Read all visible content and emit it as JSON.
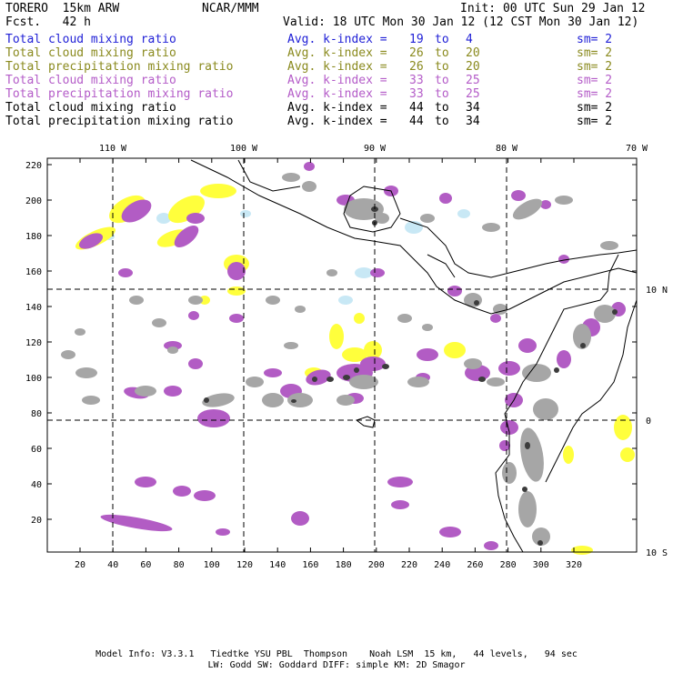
{
  "header": {
    "model": "TORERO  15km ARW",
    "org": "NCAR/MMM",
    "init": "Init: 00 UTC Sun 29 Jan 12",
    "fcst": "Fcst.   42 h",
    "valid": "Valid: 18 UTC Mon 30 Jan 12 (12 CST Mon 30 Jan 12)"
  },
  "legend": [
    {
      "name": "Total cloud mixing ratio",
      "avg": "Avg. k-index =",
      "a": "19",
      "to": "to",
      "b": "4",
      "sm": "sm= 2",
      "color": "#1f1fd6"
    },
    {
      "name": "Total cloud mixing ratio",
      "avg": "Avg. k-index =",
      "a": "26",
      "to": "to",
      "b": "20",
      "sm": "sm= 2",
      "color": "#8a8a1e"
    },
    {
      "name": "Total precipitation mixing ratio",
      "avg": "Avg. k-index =",
      "a": "26",
      "to": "to",
      "b": "20",
      "sm": "sm= 2",
      "color": "#8a8a1e"
    },
    {
      "name": "Total cloud mixing ratio",
      "avg": "Avg. k-index =",
      "a": "33",
      "to": "to",
      "b": "25",
      "sm": "sm= 2",
      "color": "#b45cc8"
    },
    {
      "name": "Total precipitation mixing ratio",
      "avg": "Avg. k-index =",
      "a": "33",
      "to": "to",
      "b": "25",
      "sm": "sm= 2",
      "color": "#b45cc8"
    },
    {
      "name": "Total cloud mixing ratio",
      "avg": "Avg. k-index =",
      "a": "44",
      "to": "to",
      "b": "34",
      "sm": "sm= 2",
      "color": "#000000"
    },
    {
      "name": "Total precipitation mixing ratio",
      "avg": "Avg. k-index =",
      "a": "44",
      "to": "to",
      "b": "34",
      "sm": "sm= 2",
      "color": "#000000"
    }
  ],
  "axes": {
    "top": [
      "110 W",
      "100 W",
      "90 W",
      "80 W",
      "70 W"
    ],
    "right": [
      "10 N",
      "0",
      "10 S"
    ],
    "left": [
      "220",
      "200",
      "180",
      "160",
      "140",
      "120",
      "100",
      "80",
      "60",
      "40",
      "20"
    ],
    "bottom": [
      "20",
      "40",
      "60",
      "80",
      "100",
      "120",
      "140",
      "160",
      "180",
      "200",
      "220",
      "240",
      "260",
      "280",
      "300",
      "320"
    ]
  },
  "colors": {
    "cloud_light": "#c8e8f5",
    "yellow": "#ffff3c",
    "purple": "#b25cc4",
    "gray": "#a6a6a6",
    "dark": "#3c3c3c"
  },
  "footer": {
    "line1": "Model Info: V3.3.1   Tiedtke YSU PBL  Thompson    Noah LSM  15 km,   44 levels,   94 sec",
    "line2": "LW: Godd SW: Goddard DIFF: simple KM: 2D Smagor"
  }
}
